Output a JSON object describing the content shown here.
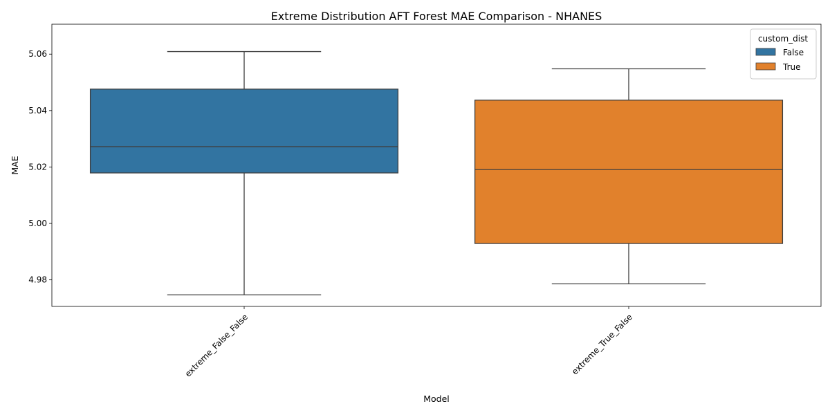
{
  "chart_data": {
    "type": "box",
    "title": "Extreme Distribution AFT Forest MAE Comparison - NHANES",
    "xlabel": "Model",
    "ylabel": "MAE",
    "ylim": [
      4.9706,
      5.0706
    ],
    "yticks": [
      "4.98",
      "5.00",
      "5.02",
      "5.04",
      "5.06"
    ],
    "ytick_values": [
      4.98,
      5.0,
      5.02,
      5.04,
      5.06
    ],
    "grid": false,
    "legend": {
      "title": "custom_dist",
      "placement": "top-right",
      "entries": [
        {
          "label": "False",
          "color": "#3274a1"
        },
        {
          "label": "True",
          "color": "#e1812c"
        }
      ]
    },
    "categories": [
      "extreme_False_False",
      "extreme_True_False"
    ],
    "boxes": [
      {
        "category": "extreme_False_False",
        "hue": "False",
        "color": "#3274a1",
        "whisker_low": 4.9747,
        "q1": 5.0179,
        "median": 5.0272,
        "q3": 5.0476,
        "whisker_high": 5.0609
      },
      {
        "category": "extreme_True_False",
        "hue": "True",
        "color": "#e1812c",
        "whisker_low": 4.9786,
        "q1": 4.9929,
        "median": 5.0191,
        "q3": 5.0437,
        "whisker_high": 5.0548
      }
    ]
  }
}
